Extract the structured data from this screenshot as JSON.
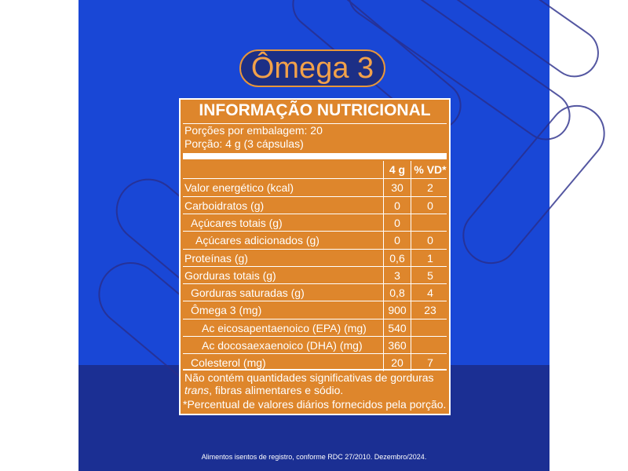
{
  "title": "Ômega 3",
  "label": {
    "title": "INFORMAÇÃO NUTRICIONAL",
    "servings": [
      "Porções por embalagem: 20",
      "Porção: 4 g (3 cápsulas)"
    ],
    "columns": [
      "4 g",
      "% VD*"
    ],
    "rows": [
      {
        "name": "Valor energético (kcal)",
        "g": "30",
        "vd": "2"
      },
      {
        "name": "Carboidratos (g)",
        "g": "0",
        "vd": "0"
      },
      {
        "name": "Açúcares totais (g)",
        "g": "0"
      },
      {
        "name": "Açúcares adicionados (g)",
        "g": "0",
        "vd": "0"
      },
      {
        "name": "Proteínas (g)",
        "g": "0,6",
        "vd": "1"
      },
      {
        "name": "Gorduras totais (g)",
        "g": "3",
        "vd": "5"
      },
      {
        "name": "Gorduras saturadas (g)",
        "g": "0,8",
        "vd": "4"
      },
      {
        "name": "Ômega 3 (mg)",
        "g": "900",
        "vd": "23"
      },
      {
        "name": "Ac eicosapentaenoico (EPA) (mg)",
        "g": "540"
      },
      {
        "name": "Ac docosaexaenoico (DHA) (mg)",
        "g": "360"
      },
      {
        "name": "Colesterol (mg)",
        "g": "20",
        "vd": "7"
      }
    ],
    "footnote": [
      "Não contém quantidades significativas de gorduras",
      "trans",
      ", fibras alimentares e sódio.",
      "*Percentual de valores diários fornecidos pela porção."
    ]
  },
  "disclaimer": "Alimentos isentos de registro, conforme RDC 27/2010. Dezembro/2024."
}
